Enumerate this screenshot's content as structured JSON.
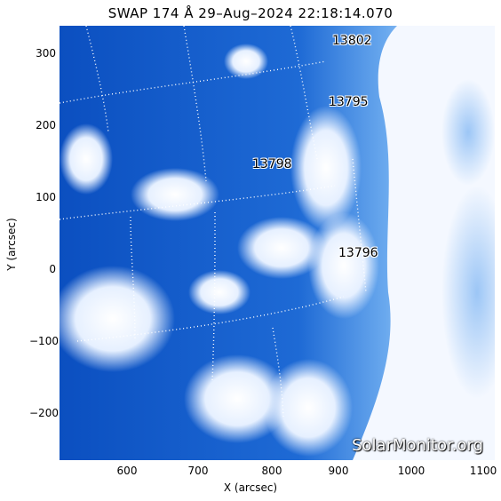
{
  "title": "SWAP 174 Å 29–Aug–2024 22:18:14.070",
  "axes": {
    "xlabel": "X (arcsec)",
    "ylabel": "Y (arcsec)",
    "xticks": [
      "600",
      "700",
      "800",
      "900",
      "1000",
      "1100"
    ],
    "yticks": [
      "300",
      "200",
      "100",
      "0",
      "−100",
      "−200"
    ]
  },
  "active_regions": [
    "13802",
    "13795",
    "13798",
    "13796"
  ],
  "watermark": "SolarMonitor.org",
  "colors": {
    "background": "#ffffff",
    "solar_blue_dark": "#0a4fbf",
    "solar_blue_mid": "#2f7ee0",
    "solar_white": "#f4f8ff"
  }
}
